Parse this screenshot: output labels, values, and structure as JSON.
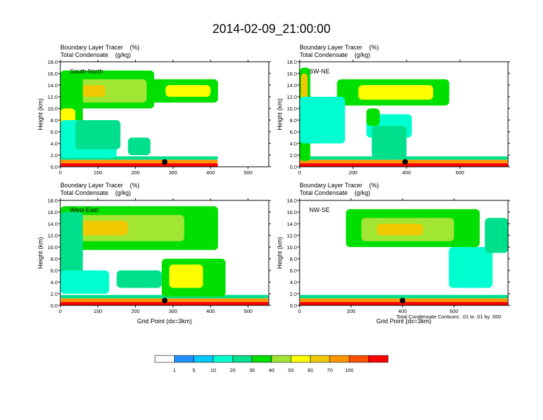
{
  "title": "2014-02-09_21:00:00",
  "colors": {
    "bins": [
      "#ffffff",
      "#1e90ff",
      "#00c8ff",
      "#00ffd0",
      "#00e08c",
      "#00e000",
      "#a0e632",
      "#ffff00",
      "#f0c800",
      "#ff9600",
      "#ff5000",
      "#ff0000"
    ],
    "outline": "#000000"
  },
  "chart_data": [
    {
      "type": "heatmap",
      "panel": "South-North",
      "header": [
        "Boundary Layer Tracer    (%)",
        "Total Condensate    (g/kg)"
      ],
      "ylabel": "Height (km)",
      "xlabel": "",
      "xlim": [
        0,
        555
      ],
      "ylim": [
        0,
        18
      ],
      "xticks": [
        0,
        100,
        200,
        300,
        400,
        500
      ],
      "yticks": [
        "0.0",
        "2.0",
        "4.0",
        "6.0",
        "8.0",
        "10.0",
        "12.0",
        "14.0",
        "16.0",
        "18.0"
      ],
      "marker_x": 278,
      "regions": [
        {
          "x": [
            0,
            420
          ],
          "y": [
            0,
            0.6
          ],
          "level": 100
        },
        {
          "x": [
            0,
            420
          ],
          "y": [
            0.6,
            1.2
          ],
          "level": 60
        },
        {
          "x": [
            0,
            420
          ],
          "y": [
            1.2,
            1.8
          ],
          "level": 10
        },
        {
          "x": [
            0,
            250
          ],
          "y": [
            10,
            16.5
          ],
          "level": 20
        },
        {
          "x": [
            20,
            230
          ],
          "y": [
            11,
            15
          ],
          "level": 30
        },
        {
          "x": [
            30,
            120
          ],
          "y": [
            12,
            14
          ],
          "level": 50
        },
        {
          "x": [
            230,
            420
          ],
          "y": [
            11,
            15
          ],
          "level": 20
        },
        {
          "x": [
            280,
            400
          ],
          "y": [
            12,
            14
          ],
          "level": 40
        },
        {
          "x": [
            0,
            60
          ],
          "y": [
            2,
            16
          ],
          "level": 20
        },
        {
          "x": [
            0,
            40
          ],
          "y": [
            3,
            10
          ],
          "level": 40
        },
        {
          "x": [
            0,
            150
          ],
          "y": [
            1.5,
            8
          ],
          "level": 5
        },
        {
          "x": [
            40,
            160
          ],
          "y": [
            3,
            8
          ],
          "level": 10
        },
        {
          "x": [
            180,
            240
          ],
          "y": [
            2,
            5
          ],
          "level": 10
        }
      ]
    },
    {
      "type": "heatmap",
      "panel": "SW-NE",
      "header": [
        "Boundary Layer Tracer    (%)",
        "Total Condensate    (g/kg)"
      ],
      "ylabel": "Height (km)",
      "xlabel": "",
      "xlim": [
        0,
        780
      ],
      "ylim": [
        0,
        18
      ],
      "xticks": [
        0,
        200,
        400,
        600
      ],
      "yticks": [
        "0.0",
        "2.0",
        "4.0",
        "6.0",
        "8.0",
        "10.0",
        "12.0",
        "14.0",
        "16.0",
        "18.0"
      ],
      "marker_x": 395,
      "regions": [
        {
          "x": [
            0,
            780
          ],
          "y": [
            0,
            0.6
          ],
          "level": 100
        },
        {
          "x": [
            0,
            780
          ],
          "y": [
            0.6,
            1.2
          ],
          "level": 60
        },
        {
          "x": [
            0,
            780
          ],
          "y": [
            1.2,
            1.8
          ],
          "level": 10
        },
        {
          "x": [
            0,
            40
          ],
          "y": [
            1,
            17
          ],
          "level": 20
        },
        {
          "x": [
            5,
            30
          ],
          "y": [
            4,
            16
          ],
          "level": 50
        },
        {
          "x": [
            140,
            560
          ],
          "y": [
            10.5,
            15
          ],
          "level": 20
        },
        {
          "x": [
            220,
            500
          ],
          "y": [
            11.5,
            14
          ],
          "level": 40
        },
        {
          "x": [
            0,
            170
          ],
          "y": [
            4,
            12
          ],
          "level": 5
        },
        {
          "x": [
            250,
            420
          ],
          "y": [
            5,
            9
          ],
          "level": 5
        },
        {
          "x": [
            270,
            400
          ],
          "y": [
            1.5,
            7
          ],
          "level": 10
        },
        {
          "x": [
            250,
            300
          ],
          "y": [
            7,
            10
          ],
          "level": 20
        }
      ]
    },
    {
      "type": "heatmap",
      "panel": "West-East",
      "header": [
        "Boundary Layer Tracer    (%)",
        "Total Condensate    (g/kg)"
      ],
      "ylabel": "Height (km)",
      "xlabel": "Grid Point (dx=3km)",
      "xlim": [
        0,
        555
      ],
      "ylim": [
        0,
        18
      ],
      "xticks": [
        0,
        100,
        200,
        300,
        400,
        500
      ],
      "yticks": [
        "0.0",
        "2.0",
        "4.0",
        "6.0",
        "8.0",
        "10.0",
        "12.0",
        "14.0",
        "16.0",
        "18.0"
      ],
      "marker_x": 278,
      "regions": [
        {
          "x": [
            0,
            555
          ],
          "y": [
            0,
            0.6
          ],
          "level": 100
        },
        {
          "x": [
            0,
            555
          ],
          "y": [
            0.6,
            1.2
          ],
          "level": 60
        },
        {
          "x": [
            0,
            555
          ],
          "y": [
            1.2,
            1.8
          ],
          "level": 10
        },
        {
          "x": [
            0,
            420
          ],
          "y": [
            9.5,
            17
          ],
          "level": 20
        },
        {
          "x": [
            20,
            330
          ],
          "y": [
            11,
            15.5
          ],
          "level": 30
        },
        {
          "x": [
            40,
            180
          ],
          "y": [
            12,
            14.5
          ],
          "level": 50
        },
        {
          "x": [
            0,
            60
          ],
          "y": [
            2,
            16
          ],
          "level": 10
        },
        {
          "x": [
            0,
            130
          ],
          "y": [
            2,
            6
          ],
          "level": 5
        },
        {
          "x": [
            150,
            270
          ],
          "y": [
            3,
            6
          ],
          "level": 10
        },
        {
          "x": [
            270,
            440
          ],
          "y": [
            1.5,
            8
          ],
          "level": 20
        },
        {
          "x": [
            290,
            380
          ],
          "y": [
            3,
            7
          ],
          "level": 40
        }
      ]
    },
    {
      "type": "heatmap",
      "panel": "NW-SE",
      "header": [
        "Boundary Layer Tracer    (%)",
        "Total Condensate    (g/kg)"
      ],
      "ylabel": "Height (km)",
      "xlabel": "Grid Point (dx=3km)",
      "xlim": [
        0,
        810
      ],
      "ylim": [
        0,
        18
      ],
      "xticks": [
        0,
        200,
        400,
        600
      ],
      "yticks": [
        "0.0",
        "2.0",
        "4.0",
        "6.0",
        "8.0",
        "10.0",
        "12.0",
        "14.0",
        "16.0",
        "18.0"
      ],
      "marker_x": 400,
      "note": "Total Condensate Contours: .01 to .01 by .000",
      "regions": [
        {
          "x": [
            0,
            810
          ],
          "y": [
            0,
            0.6
          ],
          "level": 100
        },
        {
          "x": [
            0,
            810
          ],
          "y": [
            0.6,
            1.2
          ],
          "level": 60
        },
        {
          "x": [
            0,
            810
          ],
          "y": [
            1.2,
            1.8
          ],
          "level": 10
        },
        {
          "x": [
            180,
            700
          ],
          "y": [
            10,
            16.5
          ],
          "level": 20
        },
        {
          "x": [
            240,
            600
          ],
          "y": [
            11,
            15
          ],
          "level": 30
        },
        {
          "x": [
            300,
            480
          ],
          "y": [
            12,
            14
          ],
          "level": 50
        },
        {
          "x": [
            580,
            750
          ],
          "y": [
            3,
            10
          ],
          "level": 5
        },
        {
          "x": [
            720,
            810
          ],
          "y": [
            9,
            15
          ],
          "level": 10
        }
      ]
    }
  ],
  "colorbar": {
    "labels": [
      "1",
      "5",
      "10",
      "20",
      "30",
      "40",
      "50",
      "60",
      "70",
      "100"
    ]
  }
}
